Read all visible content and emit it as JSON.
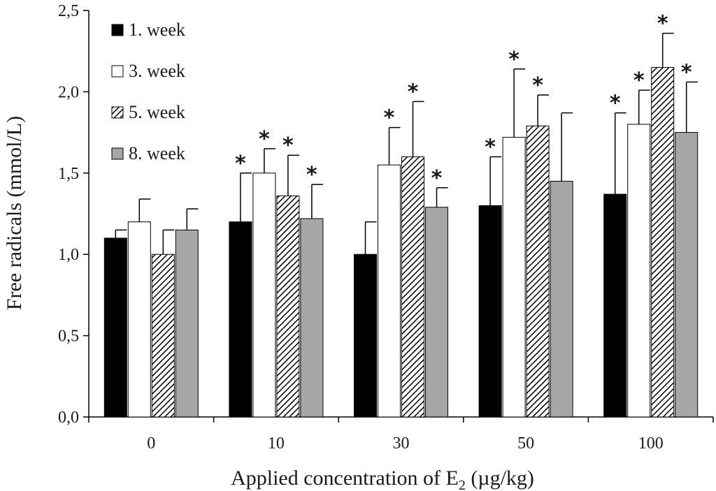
{
  "chart_data": {
    "type": "bar",
    "title": "",
    "xlabel": "Applied concentration of E",
    "xlabel_subscript": "2",
    "xlabel_suffix": " (µg/kg)",
    "ylabel": "Free radicals (mmol/L)",
    "ylim": [
      0,
      2.5
    ],
    "yticks": [
      "0,0",
      "0,5",
      "1,0",
      "1,5",
      "2,0",
      "2,5"
    ],
    "categories": [
      "0",
      "10",
      "30",
      "50",
      "100"
    ],
    "significance_marker": "*",
    "legend_position": "top-left",
    "series": [
      {
        "name": "1. week",
        "color": "#000000",
        "pattern": "solid",
        "values": [
          1.1,
          1.2,
          1.0,
          1.3,
          1.37
        ],
        "errors": [
          0.05,
          0.3,
          0.2,
          0.3,
          0.5
        ],
        "significant": [
          false,
          true,
          false,
          true,
          true
        ]
      },
      {
        "name": "3. week",
        "color": "#ffffff",
        "pattern": "solid",
        "values": [
          1.2,
          1.5,
          1.55,
          1.72,
          1.8
        ],
        "errors": [
          0.14,
          0.15,
          0.23,
          0.42,
          0.21
        ],
        "significant": [
          false,
          true,
          true,
          true,
          true
        ]
      },
      {
        "name": "5. week",
        "color": "#000000",
        "pattern": "diagonal-hatch",
        "values": [
          1.0,
          1.36,
          1.6,
          1.79,
          2.15
        ],
        "errors": [
          0.15,
          0.25,
          0.34,
          0.19,
          0.21
        ],
        "significant": [
          false,
          true,
          true,
          true,
          true
        ]
      },
      {
        "name": "8. week",
        "color": "#a6a6a6",
        "pattern": "solid",
        "values": [
          1.15,
          1.22,
          1.29,
          1.45,
          1.75
        ],
        "errors": [
          0.13,
          0.21,
          0.12,
          0.42,
          0.31
        ],
        "significant": [
          false,
          true,
          true,
          false,
          true
        ]
      }
    ]
  }
}
